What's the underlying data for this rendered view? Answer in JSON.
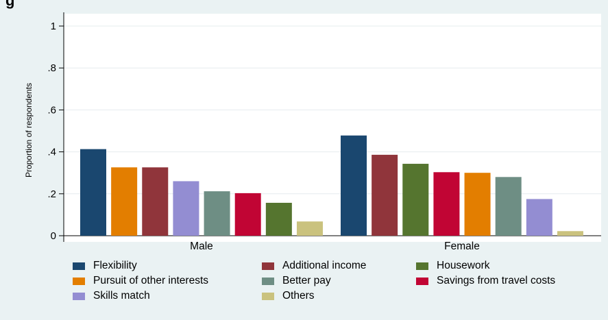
{
  "chart_data": {
    "type": "bar",
    "title": "g",
    "ylabel": "Proportion of respondents",
    "xlabel": "",
    "ylim": [
      0,
      1
    ],
    "yticks": [
      0,
      0.2,
      0.4,
      0.6,
      0.8,
      1
    ],
    "ytick_labels": [
      "0",
      ".2",
      ".4",
      ".6",
      ".8",
      "1"
    ],
    "grid": true,
    "legend_position": "bottom",
    "groups": [
      {
        "name": "Male",
        "bars": [
          {
            "series": "Flexibility",
            "value": 0.413
          },
          {
            "series": "Pursuit of other interests",
            "value": 0.326
          },
          {
            "series": "Additional income",
            "value": 0.326
          },
          {
            "series": "Skills match",
            "value": 0.26
          },
          {
            "series": "Better pay",
            "value": 0.212
          },
          {
            "series": "Savings from travel costs",
            "value": 0.203
          },
          {
            "series": "Housework",
            "value": 0.157
          },
          {
            "series": "Others",
            "value": 0.068
          }
        ]
      },
      {
        "name": "Female",
        "bars": [
          {
            "series": "Flexibility",
            "value": 0.478
          },
          {
            "series": "Additional income",
            "value": 0.386
          },
          {
            "series": "Housework",
            "value": 0.343
          },
          {
            "series": "Savings from travel costs",
            "value": 0.303
          },
          {
            "series": "Pursuit of other interests",
            "value": 0.3
          },
          {
            "series": "Better pay",
            "value": 0.28
          },
          {
            "series": "Skills match",
            "value": 0.175
          },
          {
            "series": "Others",
            "value": 0.022
          }
        ]
      }
    ],
    "series": [
      {
        "name": "Flexibility",
        "color": "#1a476f"
      },
      {
        "name": "Additional income",
        "color": "#90353b"
      },
      {
        "name": "Housework",
        "color": "#55752f"
      },
      {
        "name": "Pursuit of other interests",
        "color": "#e37e00"
      },
      {
        "name": "Better pay",
        "color": "#6e8e84"
      },
      {
        "name": "Savings from travel costs",
        "color": "#c10534"
      },
      {
        "name": "Skills match",
        "color": "#938dd2"
      },
      {
        "name": "Others",
        "color": "#cac27e"
      }
    ]
  }
}
